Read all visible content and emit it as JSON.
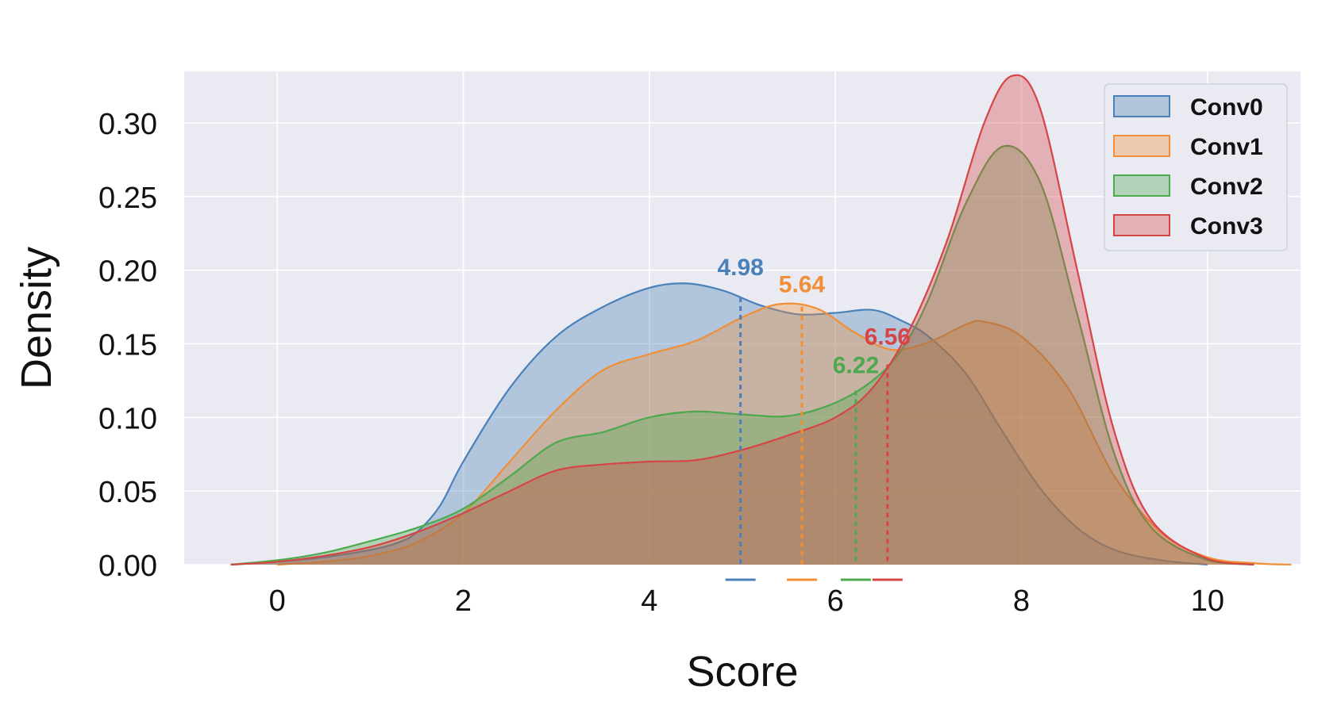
{
  "chart_data": {
    "type": "area",
    "xlabel": "Score",
    "ylabel": "Density",
    "xlim": [
      -1.0,
      11.0
    ],
    "ylim": [
      0.0,
      0.335
    ],
    "xticks": [
      "0",
      "2",
      "4",
      "6",
      "8",
      "10"
    ],
    "xtick_values": [
      0,
      2,
      4,
      6,
      8,
      10
    ],
    "yticks": [
      "0.00",
      "0.05",
      "0.10",
      "0.15",
      "0.20",
      "0.25",
      "0.30"
    ],
    "ytick_values": [
      0.0,
      0.05,
      0.1,
      0.15,
      0.2,
      0.25,
      0.3
    ],
    "grid": true,
    "legend_position": "top-right",
    "series": [
      {
        "name": "Conv0",
        "color": "#4a81b8",
        "mean": 4.98,
        "mean_label": "4.98",
        "points": [
          [
            -0.5,
            0
          ],
          [
            0,
            0.002
          ],
          [
            0.5,
            0.005
          ],
          [
            1,
            0.01
          ],
          [
            1.3,
            0.015
          ],
          [
            1.5,
            0.022
          ],
          [
            1.75,
            0.04
          ],
          [
            2,
            0.07
          ],
          [
            2.5,
            0.12
          ],
          [
            3,
            0.155
          ],
          [
            3.5,
            0.175
          ],
          [
            4,
            0.188
          ],
          [
            4.4,
            0.191
          ],
          [
            4.8,
            0.186
          ],
          [
            5.2,
            0.176
          ],
          [
            5.6,
            0.17
          ],
          [
            6,
            0.171
          ],
          [
            6.4,
            0.173
          ],
          [
            6.7,
            0.166
          ],
          [
            7,
            0.155
          ],
          [
            7.4,
            0.13
          ],
          [
            7.8,
            0.09
          ],
          [
            8.2,
            0.052
          ],
          [
            8.6,
            0.025
          ],
          [
            9,
            0.01
          ],
          [
            9.5,
            0.003
          ],
          [
            10,
            0
          ]
        ]
      },
      {
        "name": "Conv1",
        "color": "#f08f36",
        "mean": 5.64,
        "mean_label": "5.64",
        "points": [
          [
            0,
            0
          ],
          [
            0.5,
            0.002
          ],
          [
            1,
            0.006
          ],
          [
            1.5,
            0.015
          ],
          [
            2,
            0.035
          ],
          [
            2.5,
            0.07
          ],
          [
            3,
            0.105
          ],
          [
            3.5,
            0.132
          ],
          [
            4,
            0.143
          ],
          [
            4.5,
            0.152
          ],
          [
            5,
            0.168
          ],
          [
            5.4,
            0.177
          ],
          [
            5.8,
            0.174
          ],
          [
            6.2,
            0.158
          ],
          [
            6.6,
            0.146
          ],
          [
            7,
            0.151
          ],
          [
            7.4,
            0.163
          ],
          [
            7.6,
            0.165
          ],
          [
            8,
            0.155
          ],
          [
            8.5,
            0.12
          ],
          [
            9,
            0.06
          ],
          [
            9.5,
            0.022
          ],
          [
            10,
            0.005
          ],
          [
            10.5,
            0.001
          ],
          [
            10.9,
            0
          ]
        ]
      },
      {
        "name": "Conv2",
        "color": "#4da94d",
        "mean": 6.22,
        "mean_label": "6.22",
        "points": [
          [
            -0.5,
            0
          ],
          [
            0,
            0.003
          ],
          [
            0.5,
            0.008
          ],
          [
            1,
            0.016
          ],
          [
            1.5,
            0.025
          ],
          [
            2,
            0.038
          ],
          [
            2.5,
            0.06
          ],
          [
            3,
            0.083
          ],
          [
            3.5,
            0.09
          ],
          [
            4,
            0.1
          ],
          [
            4.5,
            0.104
          ],
          [
            5,
            0.102
          ],
          [
            5.5,
            0.101
          ],
          [
            6,
            0.11
          ],
          [
            6.4,
            0.125
          ],
          [
            6.7,
            0.145
          ],
          [
            7,
            0.18
          ],
          [
            7.4,
            0.245
          ],
          [
            7.8,
            0.284
          ],
          [
            8.2,
            0.26
          ],
          [
            8.6,
            0.17
          ],
          [
            9,
            0.075
          ],
          [
            9.4,
            0.025
          ],
          [
            10,
            0.003
          ],
          [
            10.5,
            0
          ]
        ]
      },
      {
        "name": "Conv3",
        "color": "#d64545",
        "mean": 6.56,
        "mean_label": "6.56",
        "points": [
          [
            -0.5,
            0
          ],
          [
            0,
            0.002
          ],
          [
            0.5,
            0.006
          ],
          [
            1,
            0.012
          ],
          [
            1.5,
            0.022
          ],
          [
            2,
            0.035
          ],
          [
            2.5,
            0.05
          ],
          [
            3,
            0.064
          ],
          [
            3.5,
            0.068
          ],
          [
            4,
            0.07
          ],
          [
            4.5,
            0.071
          ],
          [
            5,
            0.078
          ],
          [
            5.5,
            0.088
          ],
          [
            6,
            0.1
          ],
          [
            6.4,
            0.12
          ],
          [
            6.8,
            0.16
          ],
          [
            7.2,
            0.22
          ],
          [
            7.6,
            0.3
          ],
          [
            7.9,
            0.332
          ],
          [
            8.2,
            0.31
          ],
          [
            8.6,
            0.2
          ],
          [
            9,
            0.09
          ],
          [
            9.4,
            0.03
          ],
          [
            10,
            0.004
          ],
          [
            10.5,
            0
          ]
        ]
      }
    ]
  }
}
